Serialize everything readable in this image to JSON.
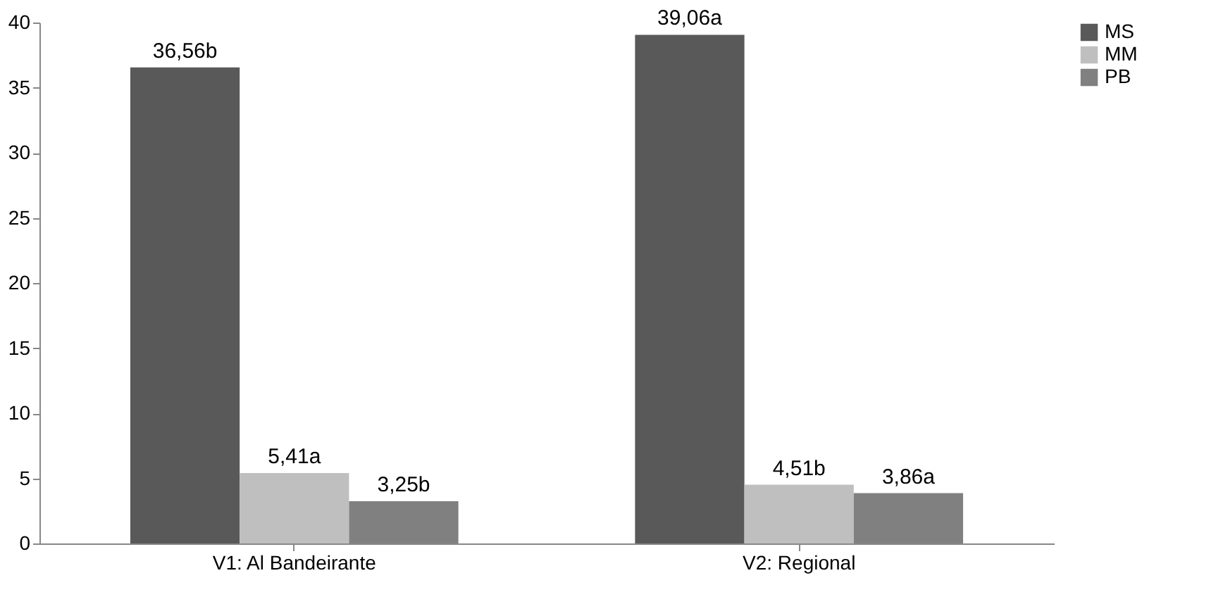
{
  "chart_data": {
    "type": "bar",
    "categories": [
      "V1: Al Bandeirante",
      "V2: Regional"
    ],
    "series": [
      {
        "name": "MS",
        "color": "#595959",
        "values": [
          36.56,
          39.06
        ],
        "value_labels": [
          "36,56b",
          "39,06a"
        ]
      },
      {
        "name": "MM",
        "color": "#bfbfbf",
        "values": [
          5.41,
          4.51
        ],
        "value_labels": [
          "5,41a",
          "4,51b"
        ]
      },
      {
        "name": "PB",
        "color": "#808080",
        "values": [
          3.25,
          3.86
        ],
        "value_labels": [
          "3,25b",
          "3,86a"
        ]
      }
    ],
    "ylim": [
      0,
      40
    ],
    "yticks": [
      0,
      5,
      10,
      15,
      20,
      25,
      30,
      35,
      40
    ],
    "grid": false,
    "legend": "right"
  }
}
